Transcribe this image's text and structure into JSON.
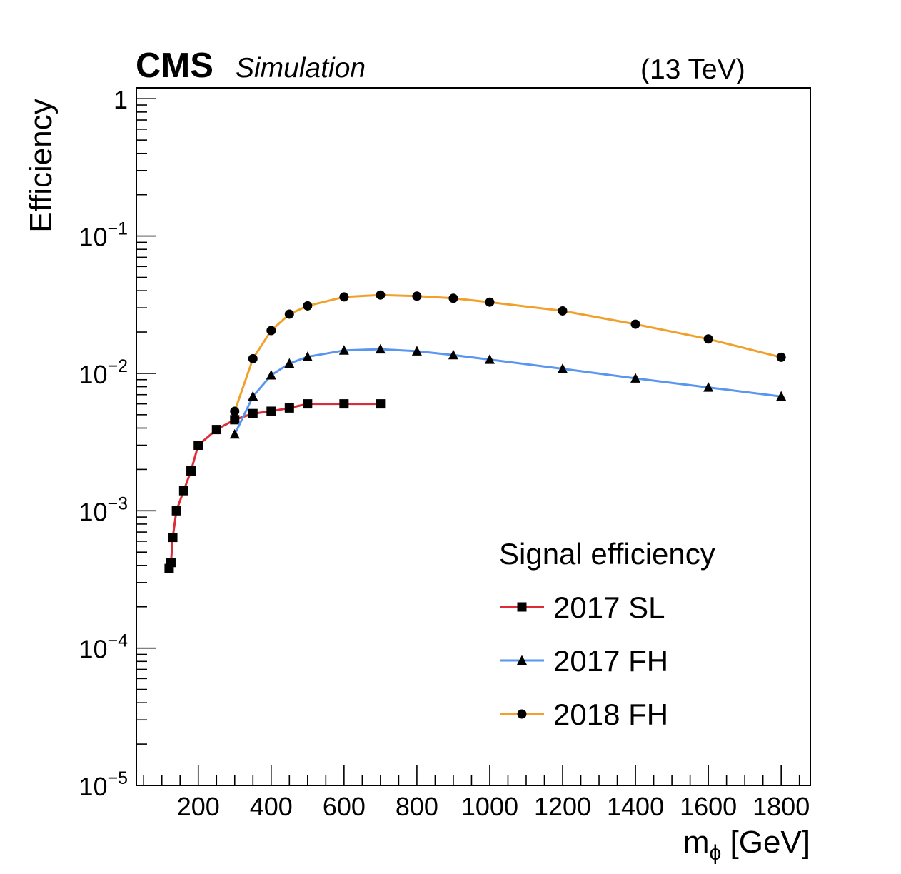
{
  "header": {
    "experiment": "CMS",
    "tag": "Simulation",
    "energy": "(13 TeV)"
  },
  "colors": {
    "sl2017": "#dd2b38",
    "fh2017": "#5a96f0",
    "fh2018": "#f0a02b"
  },
  "chart_data": {
    "type": "line",
    "xlabel_main": "m",
    "xlabel_sub": "ϕ",
    "xlabel_unit": " [GeV]",
    "ylabel": "Efficiency",
    "yscale": "log",
    "xlim": [
      30,
      1880
    ],
    "ylim": [
      1e-05,
      1.2
    ],
    "x_ticks": [
      200,
      400,
      600,
      800,
      1000,
      1200,
      1400,
      1600,
      1800
    ],
    "x_tick_labels": [
      "200",
      "400",
      "600",
      "800",
      "1000",
      "1200",
      "1400",
      "1600",
      "1800"
    ],
    "y_ticks": [
      {
        "value": 1,
        "base": "1",
        "exp": ""
      },
      {
        "value": 0.1,
        "base": "10",
        "exp": "−1"
      },
      {
        "value": 0.01,
        "base": "10",
        "exp": "−2"
      },
      {
        "value": 0.001,
        "base": "10",
        "exp": "−3"
      },
      {
        "value": 0.0001,
        "base": "10",
        "exp": "−4"
      },
      {
        "value": 1e-05,
        "base": "10",
        "exp": "−5"
      }
    ],
    "legend": {
      "title": "Signal efficiency",
      "position": "bottom-right"
    },
    "series": [
      {
        "name": "2017 SL",
        "color_key": "sl2017",
        "marker": "square",
        "x": [
          120,
          125,
          130,
          140,
          160,
          180,
          200,
          250,
          300,
          350,
          400,
          450,
          500,
          600,
          700
        ],
        "y": [
          0.00038,
          0.00042,
          0.00064,
          0.001,
          0.0014,
          0.00195,
          0.003,
          0.0039,
          0.0046,
          0.0051,
          0.0053,
          0.0056,
          0.006,
          0.006,
          0.006
        ]
      },
      {
        "name": "2017 FH",
        "color_key": "fh2017",
        "marker": "triangle",
        "x": [
          300,
          350,
          400,
          450,
          500,
          600,
          700,
          800,
          900,
          1000,
          1200,
          1400,
          1600,
          1800
        ],
        "y": [
          0.0036,
          0.0068,
          0.0097,
          0.0118,
          0.0132,
          0.0147,
          0.015,
          0.0145,
          0.0136,
          0.0126,
          0.0108,
          0.0092,
          0.0079,
          0.0068
        ]
      },
      {
        "name": "2018 FH",
        "color_key": "fh2018",
        "marker": "circle",
        "x": [
          300,
          350,
          400,
          450,
          500,
          600,
          700,
          800,
          900,
          1000,
          1200,
          1400,
          1600,
          1800
        ],
        "y": [
          0.0053,
          0.0128,
          0.0205,
          0.027,
          0.031,
          0.036,
          0.0372,
          0.0365,
          0.0352,
          0.033,
          0.0285,
          0.0228,
          0.0178,
          0.0131
        ]
      }
    ]
  }
}
